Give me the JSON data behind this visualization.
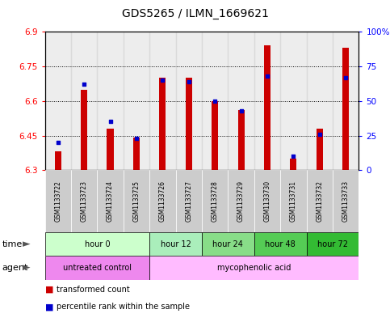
{
  "title": "GDS5265 / ILMN_1669621",
  "samples": [
    "GSM1133722",
    "GSM1133723",
    "GSM1133724",
    "GSM1133725",
    "GSM1133726",
    "GSM1133727",
    "GSM1133728",
    "GSM1133729",
    "GSM1133730",
    "GSM1133731",
    "GSM1133732",
    "GSM1133733"
  ],
  "transformed_count": [
    6.38,
    6.65,
    6.48,
    6.44,
    6.7,
    6.7,
    6.6,
    6.56,
    6.84,
    6.35,
    6.48,
    6.83
  ],
  "percentile_rank": [
    20,
    62,
    35,
    23,
    65,
    64,
    50,
    43,
    68,
    10,
    26,
    67
  ],
  "y_min": 6.3,
  "y_max": 6.9,
  "y_ticks": [
    6.3,
    6.45,
    6.6,
    6.75,
    6.9
  ],
  "y_tick_labels": [
    "6.3",
    "6.45",
    "6.6",
    "6.75",
    "6.9"
  ],
  "y2_ticks": [
    0,
    25,
    50,
    75,
    100
  ],
  "y2_tick_labels": [
    "0",
    "25",
    "50",
    "75",
    "100%"
  ],
  "bar_bottom": 6.3,
  "bar_color": "#cc0000",
  "dot_color": "#0000cc",
  "time_group_data": [
    [
      0,
      4,
      "hour 0",
      "#ccffcc"
    ],
    [
      4,
      6,
      "hour 12",
      "#aaeebb"
    ],
    [
      6,
      8,
      "hour 24",
      "#88dd88"
    ],
    [
      8,
      10,
      "hour 48",
      "#55cc55"
    ],
    [
      10,
      12,
      "hour 72",
      "#33bb33"
    ]
  ],
  "agent_group_data": [
    [
      0,
      4,
      "untreated control",
      "#ee88ee"
    ],
    [
      4,
      12,
      "mycophenolic acid",
      "#ffbbff"
    ]
  ],
  "sample_col_color": "#cccccc",
  "plot_bg_color": "#ffffff",
  "border_color": "#888888",
  "title_fontsize": 10,
  "tick_fontsize": 7.5,
  "label_fontsize": 8
}
